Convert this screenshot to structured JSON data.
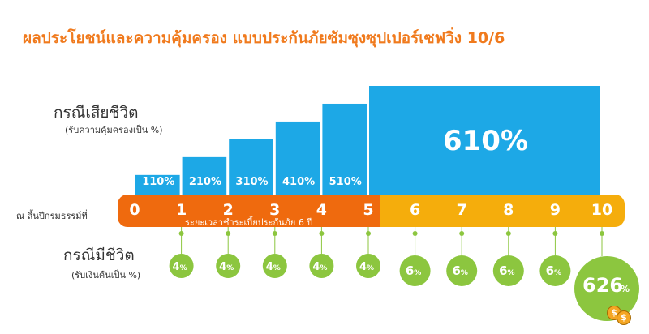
{
  "title": "ผลประโยชน์และความคุ้มครอง แบบประกันภัยซัมซุงซุปเปอร์เซฟวิ่ง 10/6",
  "death_case": {
    "label": "กรณีเสียชีวิต",
    "sub": "(รับความคุ้มครองเป็น %)"
  },
  "alive_case": {
    "label": "กรณีมีชีวิต",
    "sub": "(รับเงินคืนเป็น %)"
  },
  "timeline": {
    "label": "ณ สิ้นปีกรมธรรม์ที่",
    "period_note": "ระยะเวลาชำระเบี้ยประกันภัย 6 ปี",
    "years": [
      "0",
      "1",
      "2",
      "3",
      "4",
      "5",
      "6",
      "7",
      "8",
      "9",
      "10"
    ]
  },
  "colors": {
    "blue": "#1da8e6",
    "orange": "#ef6a0e",
    "yellow": "#f5ad0c",
    "green": "#8cc63f",
    "title": "#f07a1d"
  },
  "chart_data": {
    "type": "bar",
    "title": "ผลประโยชน์และความคุ้มครอง แบบประกันภัยซัมซุงซุปเปอร์เซฟวิ่ง 10/6",
    "death_benefit": [
      {
        "range": "0-1",
        "value": 110,
        "label": "110%"
      },
      {
        "range": "1-2",
        "value": 210,
        "label": "210%"
      },
      {
        "range": "2-3",
        "value": 310,
        "label": "310%"
      },
      {
        "range": "3-4",
        "value": 410,
        "label": "410%"
      },
      {
        "range": "4-5",
        "value": 510,
        "label": "510%"
      },
      {
        "range": "5-10",
        "value": 610,
        "label": "610%"
      }
    ],
    "survival_benefit": [
      {
        "year": "1",
        "value": "4",
        "unit": "%"
      },
      {
        "year": "2",
        "value": "4",
        "unit": "%"
      },
      {
        "year": "3",
        "value": "4",
        "unit": "%"
      },
      {
        "year": "4",
        "value": "4",
        "unit": "%"
      },
      {
        "year": "5",
        "value": "4",
        "unit": "%"
      },
      {
        "year": "6",
        "value": "6",
        "unit": "%"
      },
      {
        "year": "7",
        "value": "6",
        "unit": "%"
      },
      {
        "year": "8",
        "value": "6",
        "unit": "%"
      },
      {
        "year": "9",
        "value": "6",
        "unit": "%"
      },
      {
        "year": "10",
        "value": "626",
        "unit": "%"
      }
    ]
  }
}
